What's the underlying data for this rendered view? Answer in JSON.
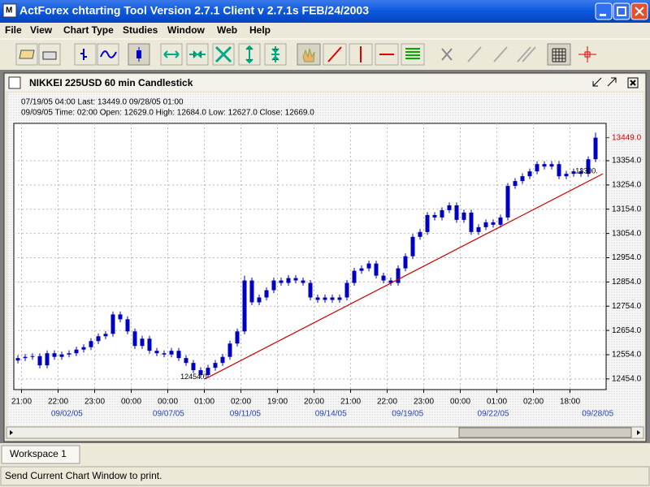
{
  "window": {
    "title": "ActForex chtarting Tool Version 2.7.1 Client v 2.7.1s FEB/24/2003"
  },
  "menu": [
    "File",
    "View",
    "Chart Type",
    "Studies",
    "Window",
    "Web",
    "Help"
  ],
  "chart_window": {
    "title": "NIKKEI 225USD  60 min  Candlestick",
    "info": [
      "07/19/05   04:00    Last: 13449.0    09/28/05  01:00",
      "09/09/05 Time: 02:00 Open: 12629.0 High: 12684.0 Low:  12627.0 Close:  12669.0"
    ]
  },
  "chart_data": {
    "type": "candlestick",
    "color": "#0000c0",
    "grid": true,
    "open": [
      12530,
      12540,
      12545,
      12548,
      12510,
      12560,
      12545,
      12555,
      12560,
      12575,
      12585,
      12610,
      12630,
      12640,
      12720,
      12700,
      12650,
      12590,
      12620,
      12570,
      12560,
      12555,
      12570,
      12540,
      12520,
      12490,
      12470,
      12500,
      12520,
      12545,
      12600,
      12650,
      12860,
      12770,
      12790,
      12820,
      12860,
      12850,
      12870,
      12860,
      12850,
      12790,
      12780,
      12790,
      12780,
      12790,
      12850,
      12900,
      12910,
      12930,
      12880,
      12860,
      12850,
      12910,
      12960,
      13040,
      13060,
      13130,
      13120,
      13150,
      13170,
      13110,
      13140,
      13060,
      13080,
      13100,
      13090,
      13120,
      13250,
      13270,
      13290,
      13310,
      13340,
      13330,
      13340,
      13290,
      13300,
      13310,
      13300,
      13360
    ],
    "high": [
      12552,
      12557,
      12560,
      12560,
      12572,
      12572,
      12567,
      12572,
      12587,
      12597,
      12622,
      12642,
      12652,
      12732,
      12732,
      12712,
      12662,
      12632,
      12632,
      12582,
      12572,
      12582,
      12582,
      12552,
      12532,
      12502,
      12512,
      12532,
      12557,
      12612,
      12662,
      12880,
      12872,
      12802,
      12832,
      12872,
      12872,
      12882,
      12882,
      12872,
      12862,
      12802,
      12802,
      12802,
      12802,
      12862,
      12912,
      12922,
      12942,
      12942,
      12892,
      12872,
      12922,
      12972,
      13052,
      13072,
      13142,
      13142,
      13162,
      13182,
      13182,
      13152,
      13152,
      13092,
      13112,
      13112,
      13132,
      13262,
      13282,
      13302,
      13322,
      13352,
      13352,
      13352,
      13352,
      13312,
      13322,
      13322,
      13372,
      13470
    ],
    "low": [
      12518,
      12528,
      12533,
      12498,
      12498,
      12533,
      12533,
      12543,
      12548,
      12563,
      12573,
      12598,
      12618,
      12628,
      12688,
      12638,
      12578,
      12578,
      12558,
      12548,
      12543,
      12543,
      12528,
      12508,
      12478,
      12458,
      12458,
      12488,
      12508,
      12533,
      12588,
      12638,
      12758,
      12758,
      12778,
      12808,
      12838,
      12838,
      12848,
      12838,
      12778,
      12768,
      12768,
      12768,
      12768,
      12778,
      12838,
      12888,
      12898,
      12868,
      12848,
      12838,
      12838,
      12898,
      12948,
      13028,
      13048,
      13108,
      13108,
      13138,
      13098,
      13098,
      13048,
      13048,
      13068,
      13078,
      13078,
      13108,
      13238,
      13258,
      13278,
      13298,
      13318,
      13318,
      13278,
      13278,
      13288,
      13288,
      13288,
      13348
    ],
    "close": [
      12540,
      12545,
      12548,
      12510,
      12560,
      12545,
      12555,
      12560,
      12575,
      12585,
      12610,
      12630,
      12640,
      12720,
      12700,
      12650,
      12590,
      12620,
      12570,
      12560,
      12555,
      12570,
      12540,
      12520,
      12490,
      12470,
      12500,
      12520,
      12545,
      12600,
      12650,
      12860,
      12770,
      12790,
      12820,
      12860,
      12850,
      12870,
      12860,
      12850,
      12790,
      12780,
      12790,
      12780,
      12790,
      12850,
      12900,
      12910,
      12930,
      12880,
      12860,
      12850,
      12910,
      12960,
      13040,
      13060,
      13130,
      13120,
      13150,
      13170,
      13110,
      13140,
      13060,
      13080,
      13100,
      13090,
      13120,
      13250,
      13270,
      13290,
      13310,
      13340,
      13330,
      13340,
      13290,
      13300,
      13310,
      13300,
      13360,
      13449
    ],
    "ylim": [
      12410,
      13508
    ],
    "yticks": [
      {
        "value": 12454,
        "label": "12454.0"
      },
      {
        "value": 12554,
        "label": "12554.0"
      },
      {
        "value": 12654,
        "label": "12654.0"
      },
      {
        "value": 12754,
        "label": "12754.0"
      },
      {
        "value": 12854,
        "label": "12854.0"
      },
      {
        "value": 12954,
        "label": "12954.0"
      },
      {
        "value": 13054,
        "label": "13054.0"
      },
      {
        "value": 13154,
        "label": "13154.0"
      },
      {
        "value": 13254,
        "label": "13254.0"
      },
      {
        "value": 13354,
        "label": "13354.0"
      }
    ],
    "last_price": {
      "value": 13449,
      "label": "13449.0",
      "color": "#cc0000"
    },
    "xticks": [
      {
        "value": 0.5,
        "label": "21:00"
      },
      {
        "value": 5.5,
        "label": "22:00"
      },
      {
        "value": 10.5,
        "label": "23:00"
      },
      {
        "value": 15.5,
        "label": "00:00"
      },
      {
        "value": 20.5,
        "label": "00:00"
      },
      {
        "value": 25.5,
        "label": "01:00"
      },
      {
        "value": 30.5,
        "label": "02:00"
      },
      {
        "value": 35.5,
        "label": "19:00"
      },
      {
        "value": 40.5,
        "label": "20:00"
      },
      {
        "value": 45.5,
        "label": "21:00"
      },
      {
        "value": 50.5,
        "label": "22:00"
      },
      {
        "value": 55.5,
        "label": "23:00"
      },
      {
        "value": 60.5,
        "label": "00:00"
      },
      {
        "value": 65.5,
        "label": "01:00"
      },
      {
        "value": 70.5,
        "label": "02:00"
      },
      {
        "value": 75.5,
        "label": "18:00"
      }
    ],
    "date_ticks": [
      {
        "value": 6.7,
        "label": "09/02/05"
      },
      {
        "value": 20.6,
        "label": "09/07/05"
      },
      {
        "value": 31.1,
        "label": "09/11/05"
      },
      {
        "value": 42.8,
        "label": "09/14/05"
      },
      {
        "value": 53.3,
        "label": "09/19/05"
      },
      {
        "value": 65,
        "label": "09/22/05"
      },
      {
        "value": 79.3,
        "label": "09/28/05"
      }
    ],
    "trendline": {
      "x": [
        25.6,
        80
      ],
      "values": [
        12454,
        13300
      ],
      "value_labels": [
        "12454.0",
        "13300."
      ],
      "color": "#cc0000"
    }
  },
  "tabs": [
    "Workspace 1"
  ],
  "status": "Send Current Chart Window to print."
}
